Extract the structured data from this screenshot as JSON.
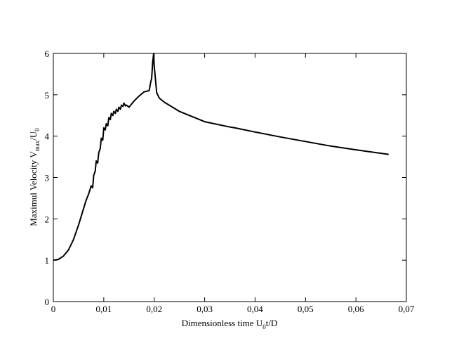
{
  "chart_data": {
    "type": "line",
    "title": "",
    "xlabel_parts": {
      "main": "Dimensionless time U",
      "sub": "0",
      "tail": "t/D"
    },
    "ylabel_parts": {
      "main": "Maximul Velocity V",
      "sub1": "max",
      "mid": "/U",
      "sub2": "0"
    },
    "xlim": [
      0,
      0.07
    ],
    "ylim": [
      0,
      6
    ],
    "xticks": [
      "0",
      "0,01",
      "0,02",
      "0,03",
      "0,04",
      "0,05",
      "0,06",
      "0,07"
    ],
    "yticks": [
      "0",
      "1",
      "2",
      "3",
      "4",
      "5",
      "6"
    ],
    "grid": false,
    "legend": "none",
    "series": [
      {
        "color": "#000000",
        "x": [
          0,
          0.001,
          0.002,
          0.003,
          0.004,
          0.005,
          0.006,
          0.0065,
          0.007,
          0.0075,
          0.0078,
          0.008,
          0.0083,
          0.0085,
          0.0088,
          0.009,
          0.0093,
          0.0095,
          0.0098,
          0.01,
          0.0103,
          0.0105,
          0.0108,
          0.011,
          0.0113,
          0.0115,
          0.0118,
          0.012,
          0.0123,
          0.0125,
          0.0128,
          0.013,
          0.0133,
          0.0135,
          0.0138,
          0.014,
          0.0143,
          0.0145,
          0.015,
          0.016,
          0.017,
          0.018,
          0.019,
          0.0193,
          0.0195,
          0.0197,
          0.0198,
          0.0199,
          0.02,
          0.0205,
          0.021,
          0.022,
          0.025,
          0.03,
          0.035,
          0.036,
          0.04,
          0.045,
          0.05,
          0.055,
          0.06,
          0.0665
        ],
        "y": [
          1.0,
          1.02,
          1.1,
          1.25,
          1.5,
          1.85,
          2.25,
          2.45,
          2.6,
          2.8,
          2.75,
          3.05,
          3.15,
          3.4,
          3.35,
          3.6,
          3.7,
          3.95,
          3.9,
          4.2,
          4.15,
          4.3,
          4.25,
          4.45,
          4.4,
          4.55,
          4.5,
          4.6,
          4.55,
          4.65,
          4.6,
          4.7,
          4.65,
          4.75,
          4.72,
          4.8,
          4.73,
          4.75,
          4.7,
          4.85,
          4.97,
          5.07,
          5.1,
          5.3,
          5.4,
          5.8,
          5.9,
          6.0,
          5.7,
          5.05,
          4.92,
          4.82,
          4.6,
          4.35,
          4.22,
          4.2,
          4.1,
          3.98,
          3.87,
          3.76,
          3.67,
          3.56
        ]
      }
    ]
  }
}
